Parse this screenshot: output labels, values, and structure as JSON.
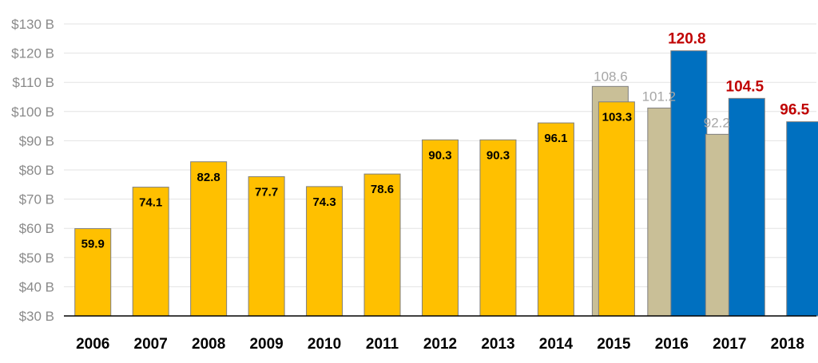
{
  "chart_data": {
    "type": "bar",
    "title": "",
    "xlabel": "",
    "ylabel": "",
    "ylim": [
      30,
      130
    ],
    "y_ticks": [
      "$30 B",
      "$40 B",
      "$50 B",
      "$60 B",
      "$70 B",
      "$80 B",
      "$90 B",
      "$100 B",
      "$110 B",
      "$120 B",
      "$130 B"
    ],
    "grid": true,
    "categories": [
      "2006",
      "2007",
      "2008",
      "2009",
      "2010",
      "2011",
      "2012",
      "2013",
      "2014",
      "2015",
      "2016",
      "2017",
      "2018"
    ],
    "series": [
      {
        "key": "grey",
        "color": "#c9bf97",
        "values": [
          null,
          null,
          null,
          null,
          null,
          null,
          null,
          null,
          null,
          108.6,
          101.2,
          92.2,
          null
        ],
        "labels": [
          "",
          "",
          "",
          "",
          "",
          "",
          "",
          "",
          "",
          "108.6",
          "101.2",
          "92.2",
          ""
        ],
        "label_color": "#a6a6a6"
      },
      {
        "key": "gold",
        "color": "#ffc000",
        "values": [
          59.9,
          74.1,
          82.8,
          77.7,
          74.3,
          78.6,
          90.3,
          90.3,
          96.1,
          103.3,
          null,
          null,
          null
        ],
        "labels": [
          "59.9",
          "74.1",
          "82.8",
          "77.7",
          "74.3",
          "78.6",
          "90.3",
          "90.3",
          "96.1",
          "103.3",
          "",
          "",
          ""
        ],
        "label_color": "#000000"
      },
      {
        "key": "blue",
        "color": "#0070c0",
        "values": [
          null,
          null,
          null,
          null,
          null,
          null,
          null,
          null,
          null,
          null,
          120.8,
          104.5,
          96.5
        ],
        "labels": [
          "",
          "",
          "",
          "",
          "",
          "",
          "",
          "",
          "",
          "",
          "120.8",
          "104.5",
          "96.5"
        ],
        "label_color": "#c00000"
      }
    ]
  }
}
